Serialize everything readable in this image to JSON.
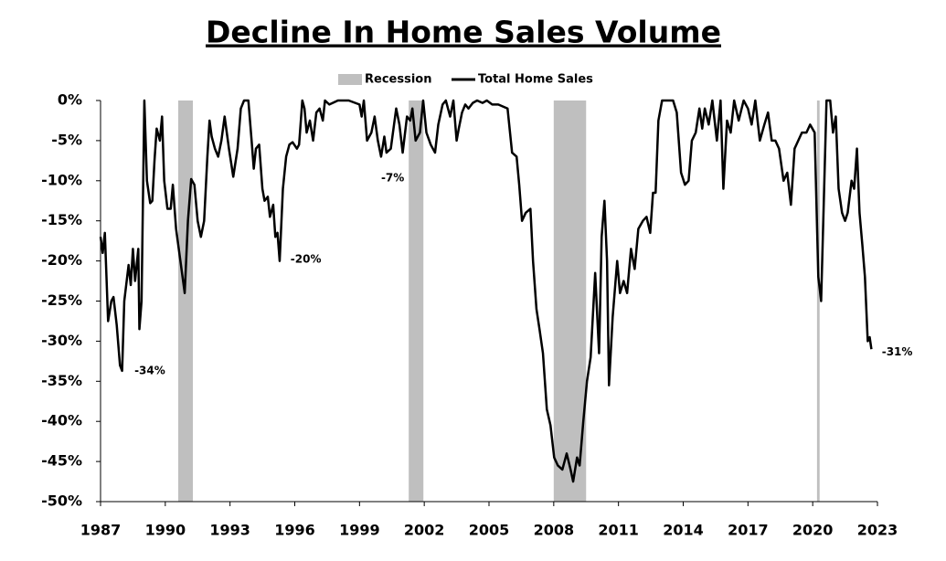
{
  "chart_data": {
    "type": "line",
    "title": "Decline In Home Sales Volume",
    "legend": "top",
    "grid": false,
    "xlim": [
      1987,
      2023
    ],
    "xticks": [
      1987,
      1990,
      1993,
      1996,
      1999,
      2002,
      2005,
      2008,
      2011,
      2014,
      2017,
      2020,
      2023
    ],
    "ylim": [
      -50,
      0
    ],
    "yticks": [
      {
        "value": 0,
        "label": "0%"
      },
      {
        "value": -5,
        "label": "-5%"
      },
      {
        "value": -10,
        "label": "-10%"
      },
      {
        "value": -15,
        "label": "-15%"
      },
      {
        "value": -20,
        "label": "-20%"
      },
      {
        "value": -25,
        "label": "-25%"
      },
      {
        "value": -30,
        "label": "-30%"
      },
      {
        "value": -35,
        "label": "-35%"
      },
      {
        "value": -40,
        "label": "-40%"
      },
      {
        "value": -45,
        "label": "-45%"
      },
      {
        "value": -50,
        "label": "-50%"
      }
    ],
    "recessions": {
      "name": "Recession",
      "color": "#bfbfbf",
      "periods": [
        [
          1990.6,
          1991.28
        ],
        [
          2001.28,
          2001.96
        ],
        [
          2008.0,
          2009.5
        ],
        [
          2020.2,
          2020.32
        ]
      ]
    },
    "series": [
      {
        "name": "Total Home Sales",
        "color": "#000000",
        "x": [
          1987.0,
          1987.1,
          1987.2,
          1987.35,
          1987.5,
          1987.6,
          1987.75,
          1987.9,
          1988.0,
          1988.1,
          1988.3,
          1988.4,
          1988.5,
          1988.6,
          1988.75,
          1988.8,
          1988.9,
          1989.03,
          1989.15,
          1989.3,
          1989.4,
          1989.5,
          1989.6,
          1989.75,
          1989.85,
          1989.95,
          1990.1,
          1990.25,
          1990.35,
          1990.5,
          1990.7,
          1990.9,
          1991.05,
          1991.2,
          1991.35,
          1991.5,
          1991.65,
          1991.8,
          1991.95,
          1992.05,
          1992.15,
          1992.3,
          1992.45,
          1992.6,
          1992.75,
          1992.95,
          1993.15,
          1993.35,
          1993.5,
          1993.65,
          1993.85,
          1994.0,
          1994.1,
          1994.2,
          1994.35,
          1994.5,
          1994.6,
          1994.75,
          1994.85,
          1995.0,
          1995.1,
          1995.2,
          1995.3,
          1995.45,
          1995.6,
          1995.75,
          1995.9,
          1996.1,
          1996.2,
          1996.35,
          1996.45,
          1996.55,
          1996.7,
          1996.85,
          1997.0,
          1997.15,
          1997.3,
          1997.4,
          1997.6,
          1998.0,
          1998.5,
          1999.0,
          1999.1,
          1999.2,
          1999.35,
          1999.55,
          1999.7,
          1999.85,
          2000.0,
          2000.15,
          2000.25,
          2000.45,
          2000.6,
          2000.7,
          2000.85,
          2001.0,
          2001.2,
          2001.35,
          2001.45,
          2001.6,
          2001.8,
          2001.95,
          2002.1,
          2002.3,
          2002.5,
          2002.65,
          2002.85,
          2003.0,
          2003.2,
          2003.35,
          2003.5,
          2003.6,
          2003.75,
          2003.9,
          2004.05,
          2004.25,
          2004.45,
          2004.7,
          2004.9,
          2005.15,
          2005.43,
          2005.86,
          2006.07,
          2006.28,
          2006.4,
          2006.53,
          2006.7,
          2006.92,
          2007.04,
          2007.2,
          2007.34,
          2007.5,
          2007.68,
          2007.85,
          2008.02,
          2008.19,
          2008.4,
          2008.6,
          2008.78,
          2008.9,
          2009.08,
          2009.2,
          2009.37,
          2009.54,
          2009.71,
          2009.92,
          2010.1,
          2010.22,
          2010.35,
          2010.47,
          2010.56,
          2010.73,
          2010.94,
          2011.07,
          2011.24,
          2011.4,
          2011.58,
          2011.75,
          2011.92,
          2012.13,
          2012.3,
          2012.47,
          2012.6,
          2012.72,
          2012.85,
          2013.02,
          2013.27,
          2013.53,
          2013.7,
          2013.9,
          2014.08,
          2014.25,
          2014.4,
          2014.58,
          2014.75,
          2014.88,
          2015.0,
          2015.18,
          2015.35,
          2015.56,
          2015.73,
          2015.86,
          2016.03,
          2016.2,
          2016.36,
          2016.57,
          2016.8,
          2017.0,
          2017.17,
          2017.34,
          2017.55,
          2017.76,
          2017.93,
          2018.1,
          2018.27,
          2018.44,
          2018.65,
          2018.82,
          2018.99,
          2019.16,
          2019.33,
          2019.5,
          2019.71,
          2019.88,
          2020.09,
          2020.26,
          2020.39,
          2020.52,
          2020.64,
          2020.81,
          2020.94,
          2021.07,
          2021.2,
          2021.36,
          2021.5,
          2021.62,
          2021.8,
          2021.92,
          2022.05,
          2022.17,
          2022.3,
          2022.42,
          2022.55,
          2022.64,
          2022.72
        ],
        "values": [
          -17,
          -19,
          -16.5,
          -27.5,
          -25,
          -24.5,
          -28,
          -33,
          -33.7,
          -25,
          -20.5,
          -23,
          -18.5,
          -22.5,
          -18.5,
          -28.5,
          -25,
          0,
          -10,
          -12.8,
          -12.5,
          -7.5,
          -3.5,
          -5,
          -2,
          -10,
          -13.5,
          -13.5,
          -10.5,
          -16,
          -20,
          -24,
          -15,
          -9.8,
          -10.5,
          -15,
          -17,
          -15,
          -7,
          -2.5,
          -4.5,
          -6,
          -7,
          -5,
          -2,
          -6,
          -9.5,
          -6,
          -1,
          0,
          0,
          -5,
          -8.5,
          -6,
          -5.5,
          -11,
          -12.5,
          -12,
          -14.5,
          -13,
          -17,
          -16.5,
          -20,
          -11,
          -7,
          -5.5,
          -5.2,
          -6,
          -5.5,
          0,
          -1,
          -4,
          -2.5,
          -5,
          -1.5,
          -1,
          -2.5,
          0,
          -0.5,
          0,
          0,
          -0.5,
          -2,
          0,
          -5,
          -4,
          -2,
          -5,
          -7,
          -4.5,
          -6.5,
          -6,
          -3,
          -1,
          -3,
          -6.5,
          -2,
          -2.5,
          -1,
          -5,
          -4,
          0,
          -4,
          -5.5,
          -6.5,
          -3,
          -0.5,
          0,
          -2,
          0,
          -5,
          -3.5,
          -1.5,
          -0.5,
          -1,
          -0.3,
          0,
          -0.3,
          0,
          -0.5,
          -0.5,
          -1,
          -6.5,
          -7,
          -10.5,
          -15,
          -14,
          -13.5,
          -20,
          -26,
          -28.5,
          -31.5,
          -38.5,
          -40.5,
          -44.5,
          -45.5,
          -46,
          -44,
          -46,
          -47.5,
          -44.5,
          -45.5,
          -40,
          -35,
          -32,
          -21.5,
          -31.5,
          -17,
          -12.5,
          -20,
          -35.5,
          -27,
          -20,
          -24,
          -22.5,
          -24,
          -18.5,
          -21,
          -16,
          -15,
          -14.5,
          -16.5,
          -11.5,
          -11.5,
          -2.5,
          0,
          0,
          0,
          -1.5,
          -9,
          -10.5,
          -10,
          -5,
          -4,
          -1,
          -3.5,
          -1,
          -3,
          0,
          -5,
          0,
          -11,
          -2.5,
          -4,
          0,
          -2.5,
          0,
          -1,
          -3,
          0,
          -5,
          -3,
          -1.5,
          -5,
          -5,
          -6,
          -10,
          -9,
          -13,
          -6,
          -5,
          -4,
          -4,
          -3,
          -4,
          -22,
          -25,
          -12,
          0,
          0,
          -4,
          -2,
          -11,
          -14,
          -15,
          -14,
          -10,
          -11,
          -6,
          -14,
          -18,
          -22,
          -30,
          -29.5,
          -31
        ]
      }
    ],
    "annotations": [
      {
        "text": "-34%",
        "x": 1988.57,
        "y": -33.7
      },
      {
        "text": "-20%",
        "x": 1995.8,
        "y": -19.8
      },
      {
        "text": "-7%",
        "x": 2000.0,
        "y": -9.7
      },
      {
        "text": "-31%",
        "x": 2023.2,
        "y": -31.4
      }
    ]
  }
}
